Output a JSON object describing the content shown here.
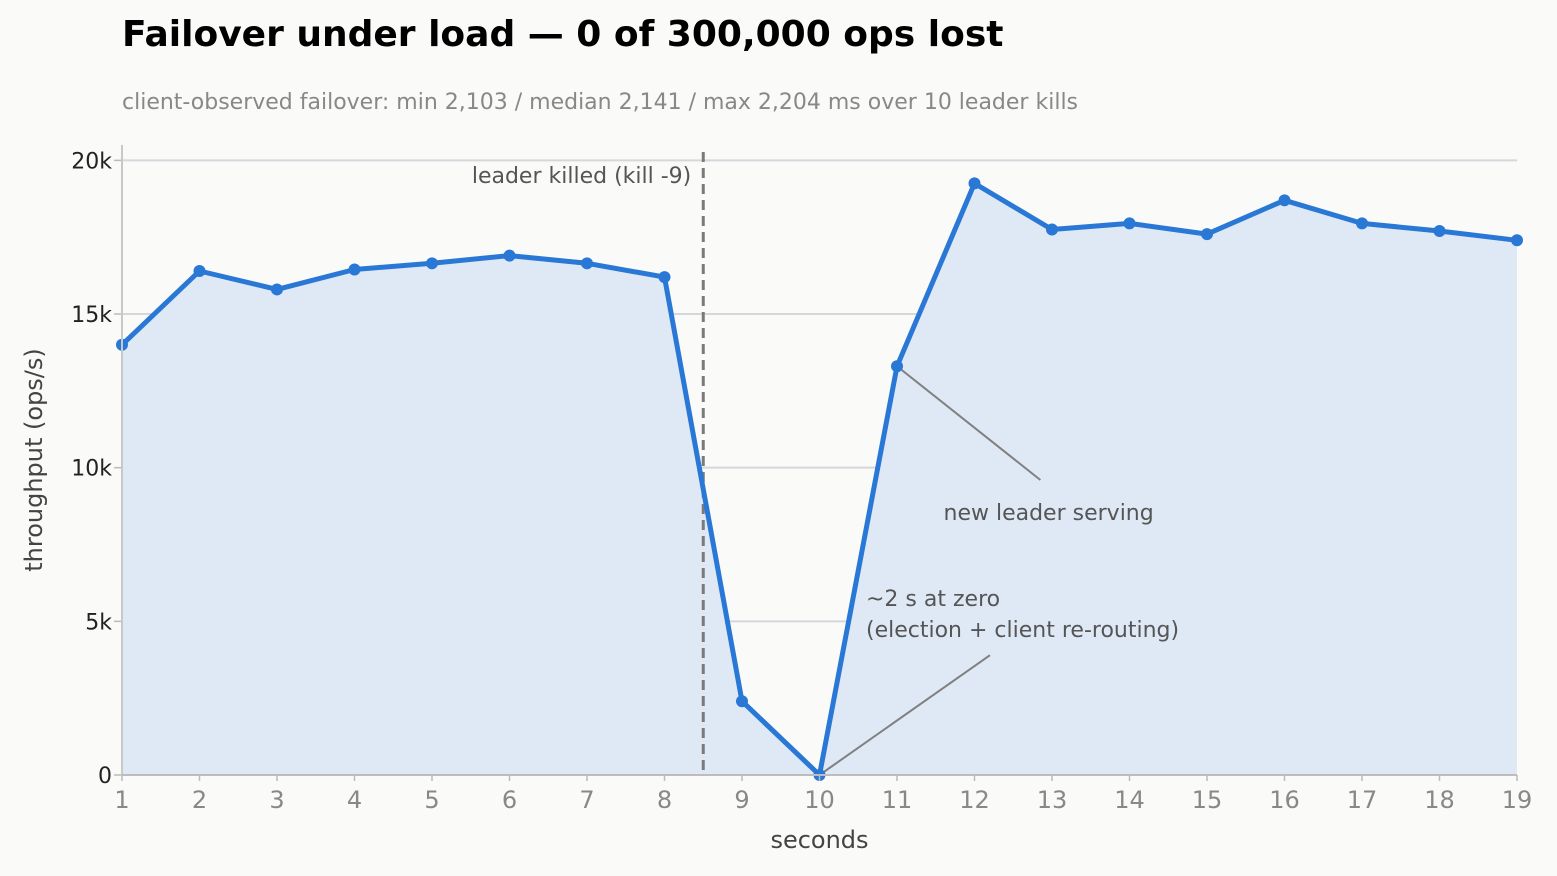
{
  "title": "Failover under load — 0 of 300,000 ops lost",
  "subtitle": "client-observed failover: min 2,103 / median 2,141 / max 2,204 ms over 10 leader kills",
  "colors": {
    "line": "#2a78d6",
    "area": "#dfe9f6",
    "grid": "#d4d8dd",
    "marker_line": "#7a7a7a",
    "annotation_line": "#808080"
  },
  "chart_data": {
    "type": "line",
    "xlabel": "seconds",
    "ylabel": "throughput (ops/s)",
    "xlim": [
      1,
      19
    ],
    "ylim": [
      0,
      20500
    ],
    "x_ticks": [
      "1",
      "2",
      "3",
      "4",
      "5",
      "6",
      "7",
      "8",
      "9",
      "10",
      "11",
      "12",
      "13",
      "14",
      "15",
      "16",
      "17",
      "18",
      "19"
    ],
    "y_ticks": [
      {
        "value": 0,
        "label": "0"
      },
      {
        "value": 5000,
        "label": "5k"
      },
      {
        "value": 10000,
        "label": "10k"
      },
      {
        "value": 15000,
        "label": "15k"
      },
      {
        "value": 20000,
        "label": "20k"
      }
    ],
    "grid": "horizontal",
    "x": [
      1,
      2,
      3,
      4,
      5,
      6,
      7,
      8,
      9,
      10,
      11,
      12,
      13,
      14,
      15,
      16,
      17,
      18,
      19
    ],
    "values": [
      14000,
      16400,
      15800,
      16450,
      16650,
      16900,
      16650,
      16200,
      2400,
      0,
      13300,
      19250,
      17750,
      17950,
      17600,
      18700,
      17950,
      17700,
      17400
    ],
    "fill_area": true,
    "event_line": {
      "x": 8.5,
      "label": "leader killed (kill -9)"
    },
    "annotations": [
      {
        "lines": [
          "new leader serving"
        ],
        "point": [
          11,
          13300
        ],
        "text_at": [
          11.6,
          8300
        ],
        "line_to": [
          12.85,
          9600
        ]
      },
      {
        "lines": [
          "~2 s at zero",
          "(election + client re-routing)"
        ],
        "point": [
          10,
          0
        ],
        "text_at": [
          10.6,
          5500
        ],
        "line_to": [
          12.2,
          3900
        ]
      }
    ]
  }
}
